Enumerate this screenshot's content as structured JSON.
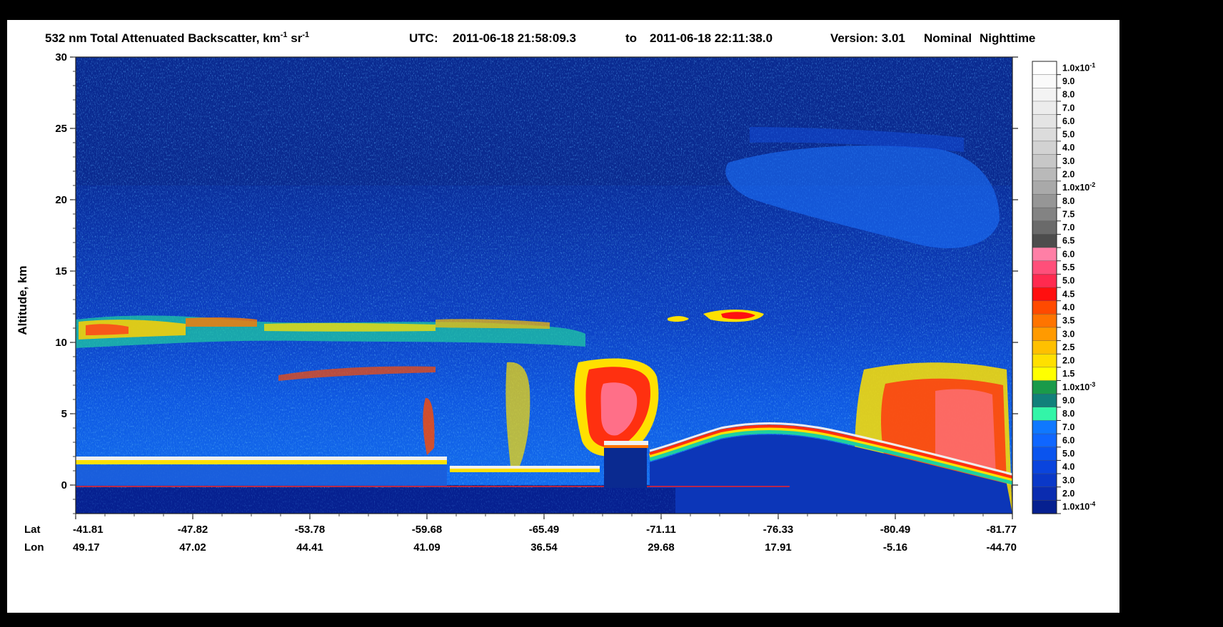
{
  "title": {
    "product": "532 nm Total Attenuated Backscatter, km",
    "product_sup1": "-1",
    "product_mid": " sr",
    "product_sup2": "-1",
    "utc_label": "UTC:",
    "utc_start": "2011-06-18 21:58:09.3",
    "utc_to": "to",
    "utc_end": "2011-06-18 22:11:38.0",
    "version_label": "Version: 3.01",
    "mode": "Nominal",
    "lighting": "Nighttime"
  },
  "chart_data": {
    "type": "heatmap",
    "ylabel": "Altitude, km",
    "ylim": [
      -2,
      30
    ],
    "yticks": [
      0,
      5,
      10,
      15,
      20,
      25,
      30
    ],
    "lat_label": "Lat",
    "lon_label": "Lon",
    "xticks": [
      {
        "lat": "-41.81",
        "lon": "49.17"
      },
      {
        "lat": "-47.82",
        "lon": "47.02"
      },
      {
        "lat": "-53.78",
        "lon": "44.41"
      },
      {
        "lat": "-59.68",
        "lon": "41.09"
      },
      {
        "lat": "-65.49",
        "lon": "36.54"
      },
      {
        "lat": "-71.11",
        "lon": "29.68"
      },
      {
        "lat": "-76.33",
        "lon": "17.91"
      },
      {
        "lat": "-80.49",
        "lon": "-5.16"
      },
      {
        "lat": "-81.77",
        "lon": "-44.70"
      }
    ],
    "colorbar": [
      {
        "label": "1.0x10",
        "sup": "-1",
        "color": "#ffffff"
      },
      {
        "label": "9.0",
        "color": "#fafafa"
      },
      {
        "label": "8.0",
        "color": "#f3f3f3"
      },
      {
        "label": "7.0",
        "color": "#ececec"
      },
      {
        "label": "6.0",
        "color": "#e4e4e4"
      },
      {
        "label": "5.0",
        "color": "#dcdcdc"
      },
      {
        "label": "4.0",
        "color": "#d2d2d2"
      },
      {
        "label": "3.0",
        "color": "#c7c7c7"
      },
      {
        "label": "2.0",
        "color": "#b9b9b9"
      },
      {
        "label": "1.0x10",
        "sup": "-2",
        "color": "#a9a9a9"
      },
      {
        "label": "8.0",
        "color": "#969696"
      },
      {
        "label": "7.5",
        "color": "#838383"
      },
      {
        "label": "7.0",
        "color": "#6a6a6a"
      },
      {
        "label": "6.5",
        "color": "#4d4d4d"
      },
      {
        "label": "6.0",
        "color": "#ff7fa6"
      },
      {
        "label": "5.5",
        "color": "#ff4f7a"
      },
      {
        "label": "5.0",
        "color": "#ff2a4f"
      },
      {
        "label": "4.5",
        "color": "#ff0f0f"
      },
      {
        "label": "4.0",
        "color": "#ff4a00"
      },
      {
        "label": "3.5",
        "color": "#ff7400"
      },
      {
        "label": "3.0",
        "color": "#ff9a00"
      },
      {
        "label": "2.5",
        "color": "#ffc000"
      },
      {
        "label": "2.0",
        "color": "#ffe000"
      },
      {
        "label": "1.5",
        "color": "#ffff00"
      },
      {
        "label": "1.0x10",
        "sup": "-3",
        "color": "#1a9a4a"
      },
      {
        "label": "9.0",
        "color": "#11807a"
      },
      {
        "label": "8.0",
        "color": "#33f5a8"
      },
      {
        "label": "7.0",
        "color": "#0f78ff"
      },
      {
        "label": "6.0",
        "color": "#0f66ff"
      },
      {
        "label": "5.0",
        "color": "#0a54ee"
      },
      {
        "label": "4.0",
        "color": "#0a44dd"
      },
      {
        "label": "3.0",
        "color": "#0a38c8"
      },
      {
        "label": "2.0",
        "color": "#0a2cb0"
      },
      {
        "label": "1.0x10",
        "sup": "-4",
        "color": "#062090"
      }
    ],
    "background_color": "#0a2a90"
  }
}
